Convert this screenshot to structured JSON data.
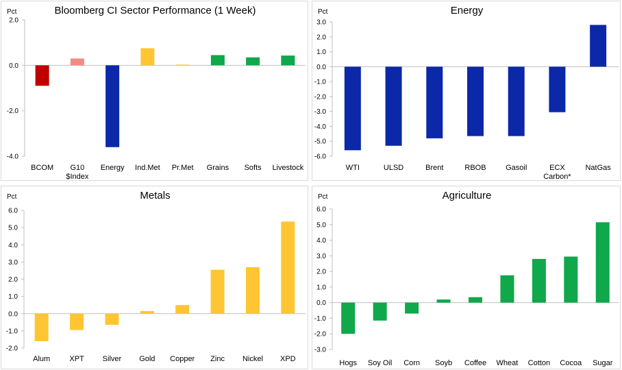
{
  "chart_data": [
    {
      "type": "bar",
      "title": "Bloomberg CI Sector Performance (1 Week)",
      "ylabel": "Pct",
      "ylim": [
        -4,
        2
      ],
      "ytick_labels": [
        "-4.0",
        "-2.0",
        "0.0",
        "2.0"
      ],
      "grid": false,
      "categories": [
        [
          "BCOM"
        ],
        [
          "G10",
          "$Index"
        ],
        [
          "Energy"
        ],
        [
          "Ind.Met"
        ],
        [
          "Pr.Met"
        ],
        [
          "Grains"
        ],
        [
          "Softs"
        ],
        [
          "Livestock"
        ]
      ],
      "values": [
        -0.9,
        0.3,
        -3.6,
        0.75,
        0.03,
        0.45,
        0.35,
        0.43
      ],
      "bar_colors": [
        "#c00000",
        "#f28b82",
        "#0b28a8",
        "#ffc533",
        "#ffc533",
        "#0fa84a",
        "#0fa84a",
        "#0fa84a"
      ]
    },
    {
      "type": "bar",
      "title": "Energy",
      "ylabel": "Pct",
      "ylim": [
        -6,
        3
      ],
      "ytick_labels": [
        "-6.0",
        "-5.0",
        "-4.0",
        "-3.0",
        "-2.0",
        "-1.0",
        "0.0",
        "1.0",
        "2.0",
        "3.0"
      ],
      "grid": false,
      "categories": [
        [
          "WTI"
        ],
        [
          "ULSD"
        ],
        [
          "Brent"
        ],
        [
          "RBOB"
        ],
        [
          "Gasoil"
        ],
        [
          "ECX",
          "Carbon*"
        ],
        [
          "NatGas"
        ]
      ],
      "values": [
        -5.6,
        -5.3,
        -4.8,
        -4.65,
        -4.65,
        -3.05,
        2.8
      ],
      "bar_colors": [
        "#0b28a8",
        "#0b28a8",
        "#0b28a8",
        "#0b28a8",
        "#0b28a8",
        "#0b28a8",
        "#0b28a8"
      ]
    },
    {
      "type": "bar",
      "title": "Metals",
      "ylabel": "Pct",
      "ylim": [
        -2,
        6
      ],
      "ytick_labels": [
        "-2.0",
        "-1.0",
        "0.0",
        "1.0",
        "2.0",
        "3.0",
        "4.0",
        "5.0",
        "6.0"
      ],
      "grid": false,
      "categories": [
        [
          "Alum"
        ],
        [
          "XPT"
        ],
        [
          "Silver"
        ],
        [
          "Gold"
        ],
        [
          "Copper"
        ],
        [
          "Zinc"
        ],
        [
          "Nickel"
        ],
        [
          "XPD"
        ]
      ],
      "values": [
        -1.6,
        -0.95,
        -0.65,
        0.15,
        0.5,
        2.55,
        2.7,
        5.35
      ],
      "bar_colors": [
        "#ffc533",
        "#ffc533",
        "#ffc533",
        "#ffc533",
        "#ffc533",
        "#ffc533",
        "#ffc533",
        "#ffc533"
      ]
    },
    {
      "type": "bar",
      "title": "Agriculture",
      "ylabel": "Pct",
      "ylim": [
        -3,
        6
      ],
      "ytick_labels": [
        "-3.0",
        "-2.0",
        "-1.0",
        "0.0",
        "1.0",
        "2.0",
        "3.0",
        "4.0",
        "5.0",
        "6.0"
      ],
      "grid": false,
      "categories": [
        [
          "Hogs"
        ],
        [
          "Soy Oil"
        ],
        [
          "Corn"
        ],
        [
          "Soyb"
        ],
        [
          "Coffee"
        ],
        [
          "Wheat"
        ],
        [
          "Cotton"
        ],
        [
          "Cocoa"
        ],
        [
          "Sugar"
        ]
      ],
      "values": [
        -2.0,
        -1.15,
        -0.7,
        0.2,
        0.35,
        1.75,
        2.8,
        2.95,
        5.15
      ],
      "bar_colors": [
        "#0fa84a",
        "#0fa84a",
        "#0fa84a",
        "#0fa84a",
        "#0fa84a",
        "#0fa84a",
        "#0fa84a",
        "#0fa84a",
        "#0fa84a"
      ]
    }
  ]
}
